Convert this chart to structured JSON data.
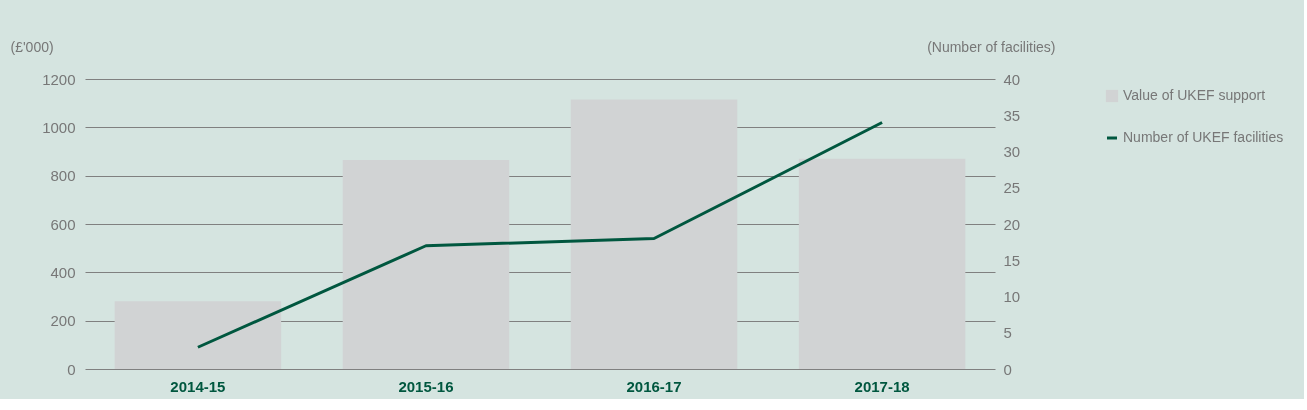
{
  "chart_data": {
    "type": "bar",
    "categories": [
      "2014-15",
      "2015-16",
      "2016-17",
      "2017-18"
    ],
    "series": [
      {
        "name": "Value of UKEF support",
        "color": "#d1d3d4",
        "values": [
          280,
          865,
          1115,
          870
        ]
      },
      {
        "name": "Number of UKEF facilities",
        "type": "line",
        "axis": "y2",
        "color": "#00573f",
        "values": [
          3,
          17,
          18,
          34
        ]
      }
    ],
    "ylabel": "(£'000)",
    "y2label": "(Number of facilities)",
    "ylim": [
      0,
      1200
    ],
    "yticks": [
      0,
      200,
      400,
      600,
      800,
      1000,
      1200
    ],
    "y2lim": [
      0,
      40
    ],
    "y2ticks": [
      0,
      5,
      10,
      15,
      20,
      25,
      30,
      35,
      40
    ],
    "grid": "y",
    "legend": "right",
    "marker": "none",
    "line_style": "solid"
  }
}
